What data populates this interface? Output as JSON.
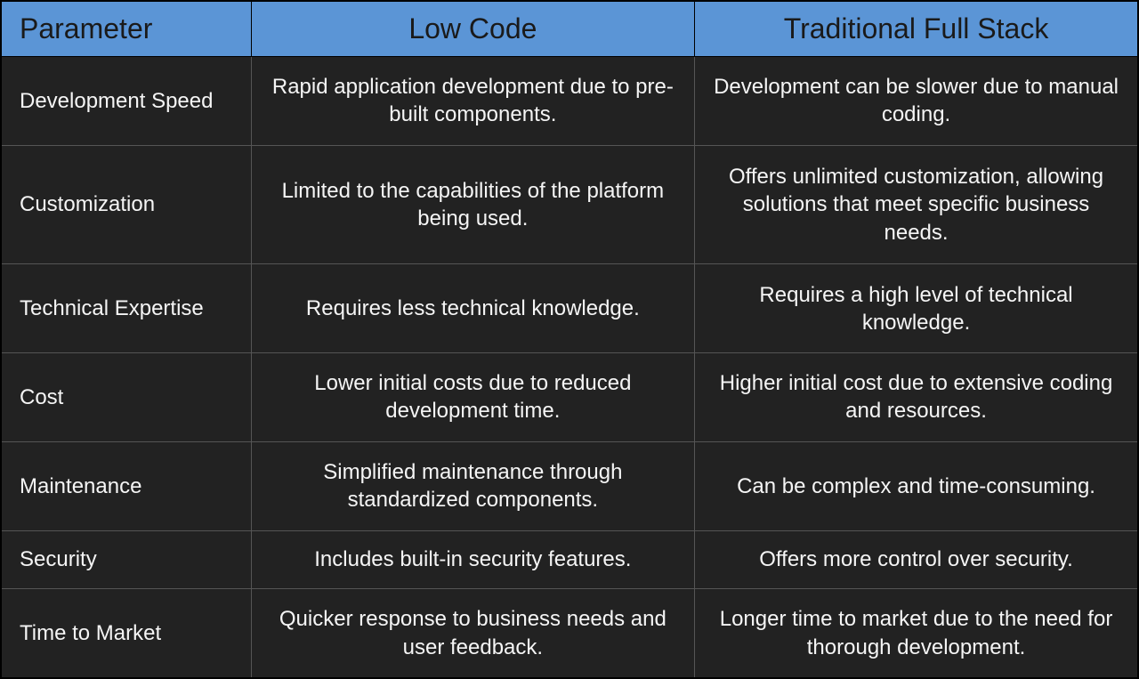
{
  "table": {
    "type": "table",
    "header_bg_color": "#5b95d6",
    "header_text_color": "#1a1a1a",
    "body_bg_color": "#222222",
    "body_text_color": "#f5f5f5",
    "border_color": "#000000",
    "cell_border_color": "#555555",
    "header_fontsize": 32,
    "body_fontsize": 24,
    "columns": [
      {
        "label": "Parameter",
        "align": "left",
        "width_pct": 22
      },
      {
        "label": "Low Code",
        "align": "center",
        "width_pct": 39
      },
      {
        "label": "Traditional Full Stack",
        "align": "center",
        "width_pct": 39
      }
    ],
    "rows": [
      {
        "param": "Development Speed",
        "lowcode": "Rapid application development due to pre-built components.",
        "traditional": "Development can be slower due to manual coding."
      },
      {
        "param": "Customization",
        "lowcode": "Limited to the capabilities of the platform being used.",
        "traditional": "Offers unlimited customization, allowing solutions that meet specific business needs."
      },
      {
        "param": "Technical Expertise",
        "lowcode": "Requires less technical knowledge.",
        "traditional": "Requires a high level of technical knowledge."
      },
      {
        "param": "Cost",
        "lowcode": "Lower initial costs due to reduced development time.",
        "traditional": "Higher initial cost due to extensive coding and resources."
      },
      {
        "param": "Maintenance",
        "lowcode": "Simplified maintenance through standardized components.",
        "traditional": "Can be complex and time-consuming."
      },
      {
        "param": "Security",
        "lowcode": "Includes built-in security features.",
        "traditional": "Offers more control over security."
      },
      {
        "param": "Time to Market",
        "lowcode": "Quicker response to business needs and user feedback.",
        "traditional": "Longer time to market due to the need for thorough development."
      }
    ]
  }
}
